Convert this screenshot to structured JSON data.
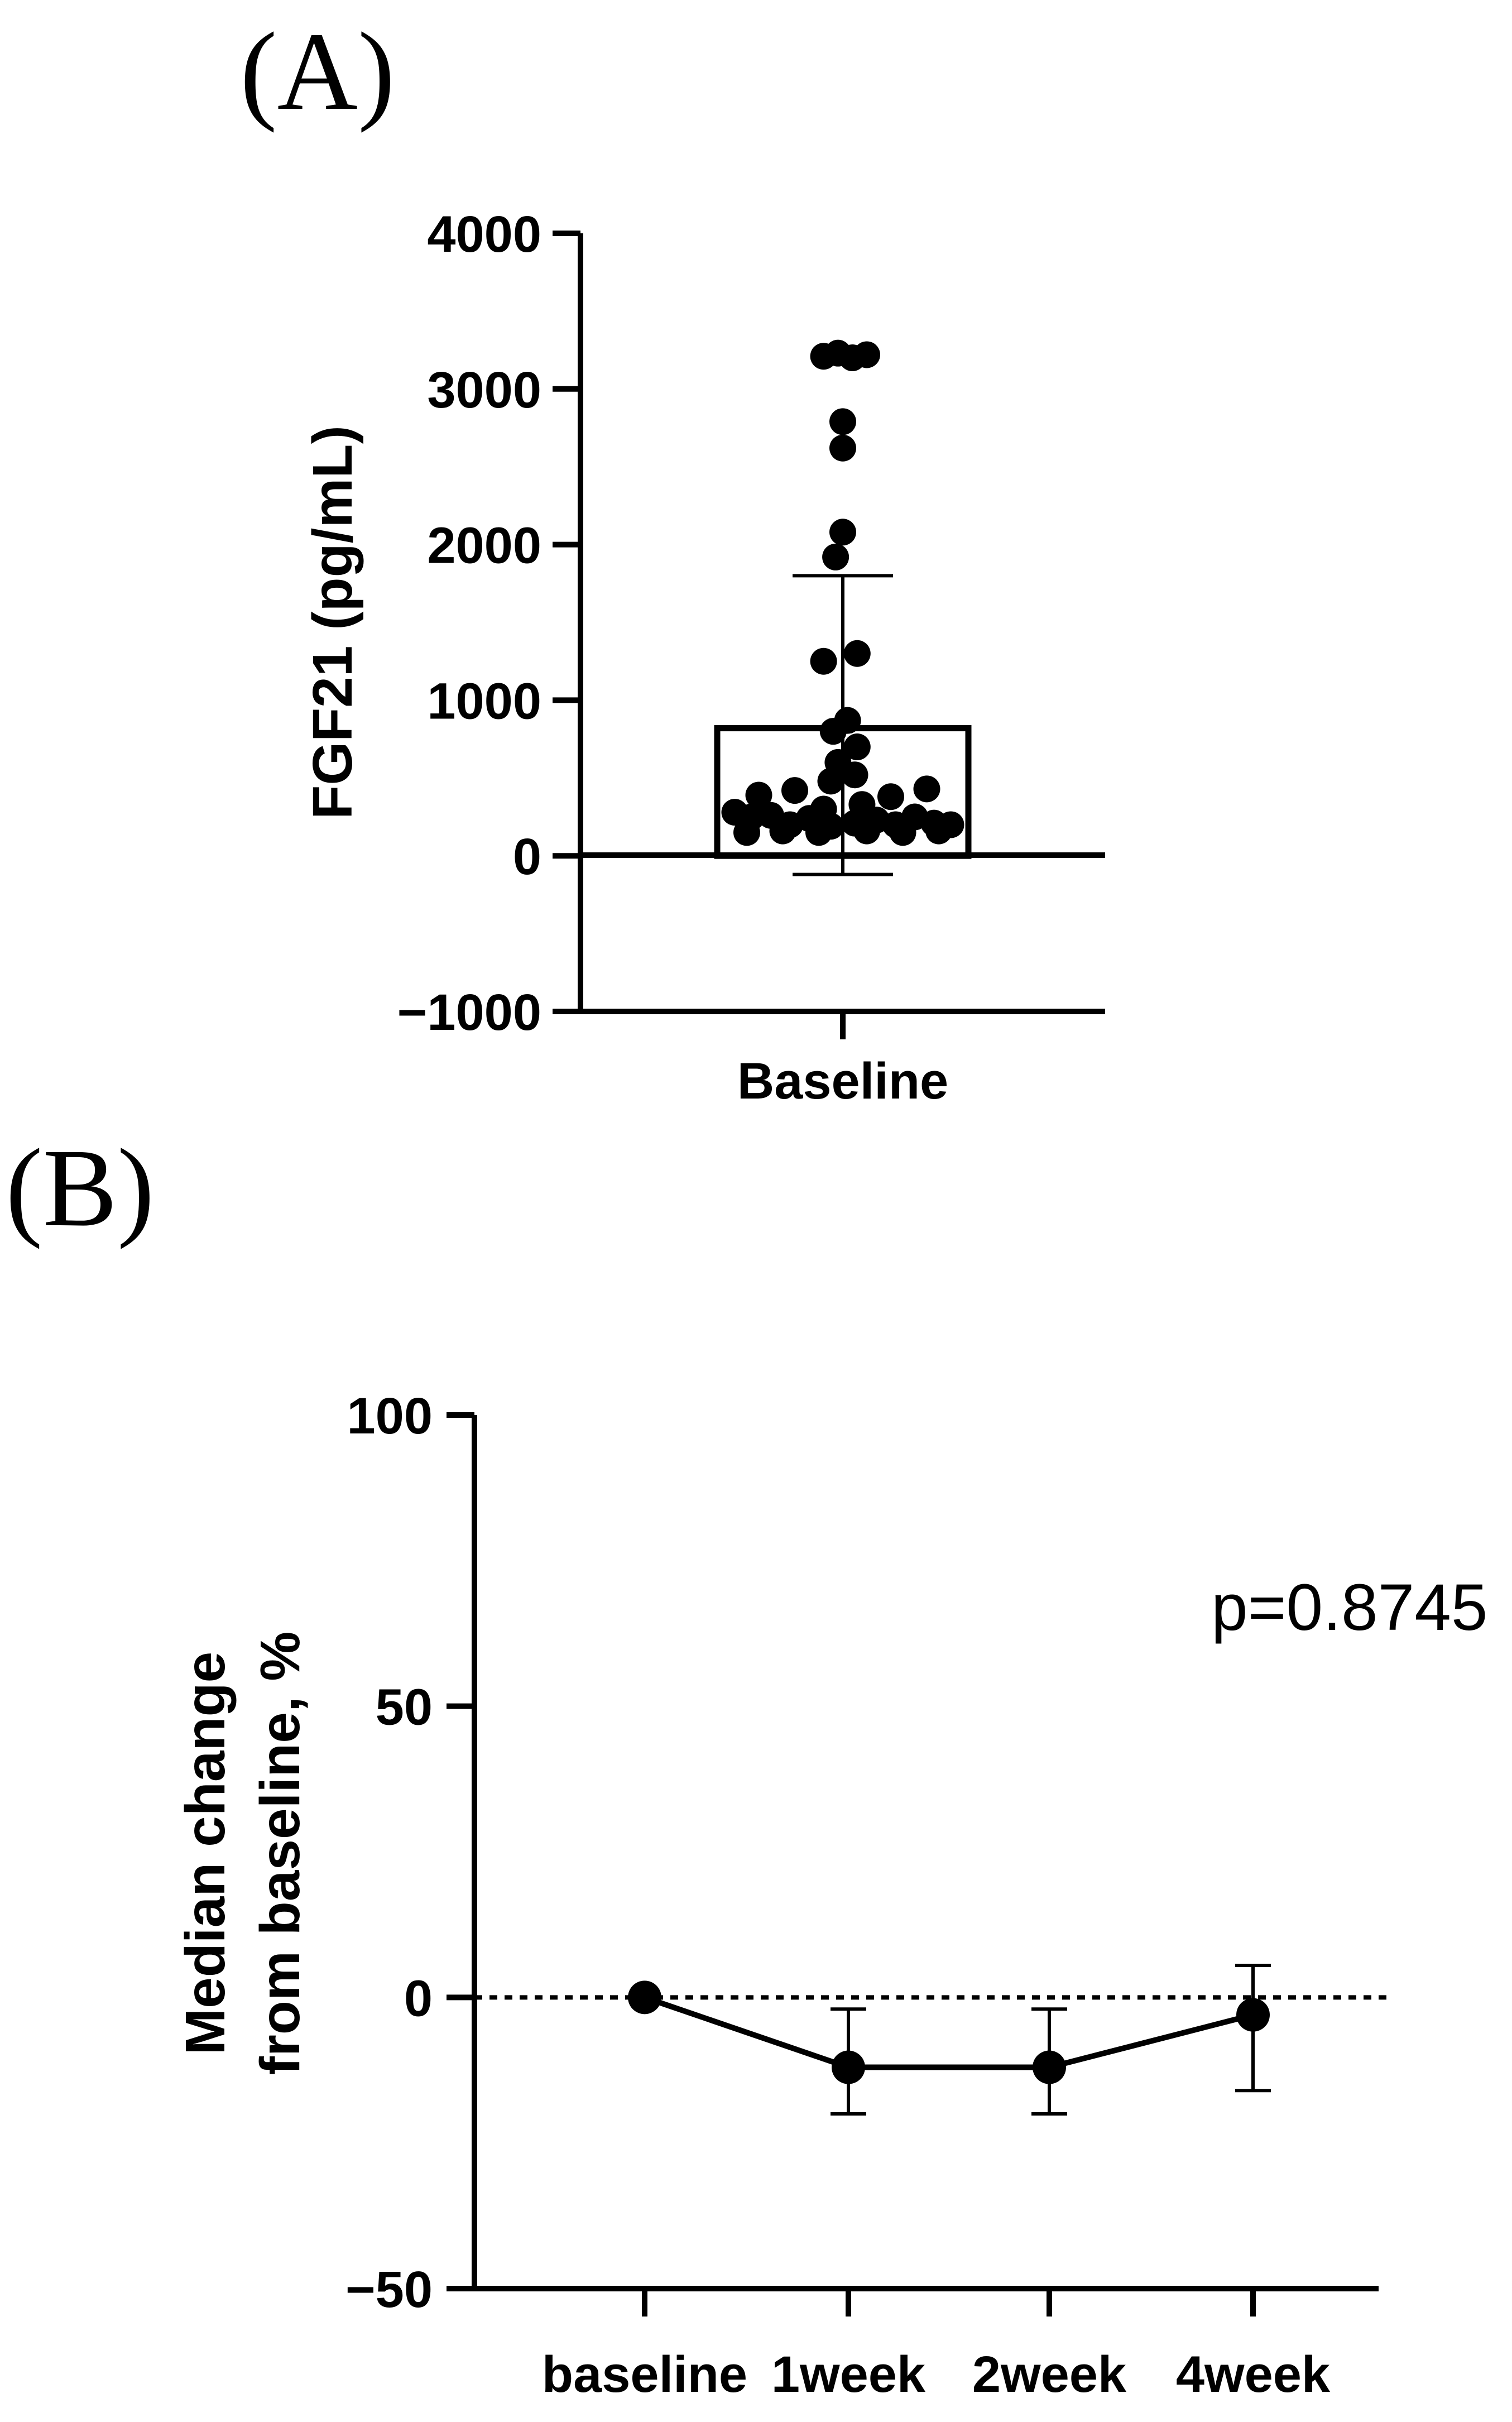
{
  "panels": {
    "a_label": "(A)",
    "b_label": "(B)"
  },
  "chart_data": [
    {
      "type": "bar",
      "panel": "A",
      "ylabel": "FGF21 (pg/mL)",
      "categories": [
        "Baseline"
      ],
      "values": [
        820
      ],
      "error": {
        "upper": 1800,
        "lower": -120
      },
      "ylim": [
        -1000,
        4000
      ],
      "yticks": [
        -1000,
        0,
        1000,
        2000,
        3000,
        4000
      ],
      "ytick_labels": [
        "−1000",
        "0",
        "1000",
        "2000",
        "3000",
        "4000"
      ],
      "points": [
        {
          "x": -0.45,
          "y": 280
        },
        {
          "x": -0.38,
          "y": 250
        },
        {
          "x": -0.3,
          "y": 260
        },
        {
          "x": -0.22,
          "y": 200
        },
        {
          "x": -0.14,
          "y": 240
        },
        {
          "x": -0.05,
          "y": 190
        },
        {
          "x": 0.05,
          "y": 210
        },
        {
          "x": 0.14,
          "y": 230
        },
        {
          "x": 0.22,
          "y": 200
        },
        {
          "x": 0.3,
          "y": 250
        },
        {
          "x": 0.38,
          "y": 210
        },
        {
          "x": 0.45,
          "y": 200
        },
        {
          "x": -0.4,
          "y": 150
        },
        {
          "x": -0.25,
          "y": 160
        },
        {
          "x": -0.1,
          "y": 150
        },
        {
          "x": 0.1,
          "y": 160
        },
        {
          "x": 0.25,
          "y": 150
        },
        {
          "x": 0.4,
          "y": 160
        },
        {
          "x": -0.35,
          "y": 390
        },
        {
          "x": -0.2,
          "y": 420
        },
        {
          "x": 0.2,
          "y": 380
        },
        {
          "x": 0.35,
          "y": 430
        },
        {
          "x": -0.08,
          "y": 300
        },
        {
          "x": 0.08,
          "y": 330
        },
        {
          "x": -0.05,
          "y": 480
        },
        {
          "x": 0.05,
          "y": 520
        },
        {
          "x": -0.02,
          "y": 600
        },
        {
          "x": 0.06,
          "y": 700
        },
        {
          "x": -0.04,
          "y": 800
        },
        {
          "x": 0.02,
          "y": 870
        },
        {
          "x": -0.08,
          "y": 1250
        },
        {
          "x": 0.06,
          "y": 1300
        },
        {
          "x": -0.03,
          "y": 1920
        },
        {
          "x": 0.0,
          "y": 2080
        },
        {
          "x": 0.0,
          "y": 2620
        },
        {
          "x": 0.0,
          "y": 2790
        },
        {
          "x": -0.08,
          "y": 3210
        },
        {
          "x": -0.02,
          "y": 3230
        },
        {
          "x": 0.04,
          "y": 3200
        },
        {
          "x": 0.1,
          "y": 3220
        }
      ]
    },
    {
      "type": "line",
      "panel": "B",
      "ylabel_lines": [
        "Median change",
        "from baseline, %"
      ],
      "categories": [
        "baseline",
        "1week",
        "2week",
        "4week"
      ],
      "values": [
        0,
        -12,
        -12,
        -3
      ],
      "error": {
        "upper": [
          null,
          -2,
          -2,
          5.5
        ],
        "lower": [
          null,
          -20,
          -20,
          -16
        ]
      },
      "ylim": [
        -50,
        100
      ],
      "yticks": [
        -50,
        0,
        50,
        100
      ],
      "ytick_labels": [
        "−50",
        "0",
        "50",
        "100"
      ],
      "reference_line": {
        "y": 0,
        "style": "dotted"
      },
      "annotation": "p=0.8745"
    }
  ]
}
